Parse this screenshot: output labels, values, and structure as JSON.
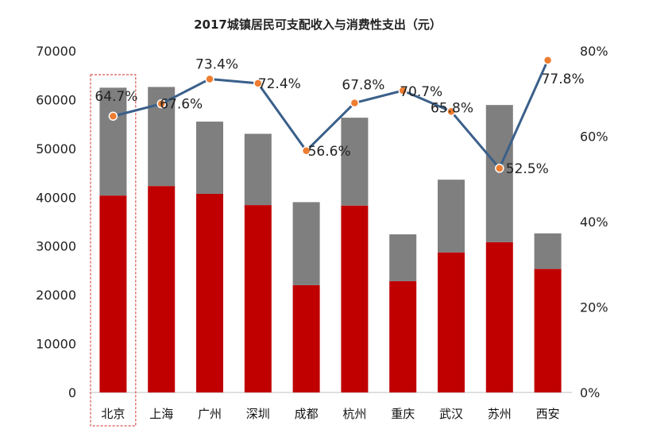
{
  "chart_data": {
    "type": "bar+line",
    "title": "2017城镇居民可支配收入与消费性支出（元）",
    "categories": [
      "北京",
      "上海",
      "广州",
      "深圳",
      "成都",
      "杭州",
      "重庆",
      "武汉",
      "苏州",
      "西安"
    ],
    "series": [
      {
        "role": "stacked-bar-bottom",
        "values": [
          40350,
          42300,
          40700,
          38400,
          22000,
          38300,
          22800,
          28700,
          30800,
          25300
        ]
      },
      {
        "role": "stacked-bar-top",
        "values": [
          22100,
          20300,
          14800,
          14600,
          17000,
          18000,
          9600,
          14900,
          28100,
          7300
        ]
      },
      {
        "role": "line-percent",
        "values": [
          64.7,
          67.6,
          73.4,
          72.4,
          56.6,
          67.8,
          70.7,
          65.8,
          52.5,
          77.8
        ]
      }
    ],
    "point_labels": [
      "64.7%",
      "67.6%",
      "73.4%",
      "72.4%",
      "56.6%",
      "67.8%",
      "70.7%",
      "65.8%",
      "52.5%",
      "77.8%"
    ],
    "y_left": {
      "min": 0,
      "max": 70000,
      "ticks": [
        "0",
        "10000",
        "20000",
        "30000",
        "40000",
        "50000",
        "60000",
        "70000"
      ]
    },
    "y_right": {
      "min": 0,
      "max": 80,
      "ticks": [
        "0%",
        "20%",
        "40%",
        "60%",
        "80%"
      ]
    },
    "highlight_category": "北京",
    "colors": {
      "bar_bottom": "#c00000",
      "bar_top": "#7f7f7f",
      "line": "#3a5f8a",
      "marker": "#ed7d31",
      "highlight": "#d9534f"
    },
    "grid": false,
    "legend": "none"
  }
}
